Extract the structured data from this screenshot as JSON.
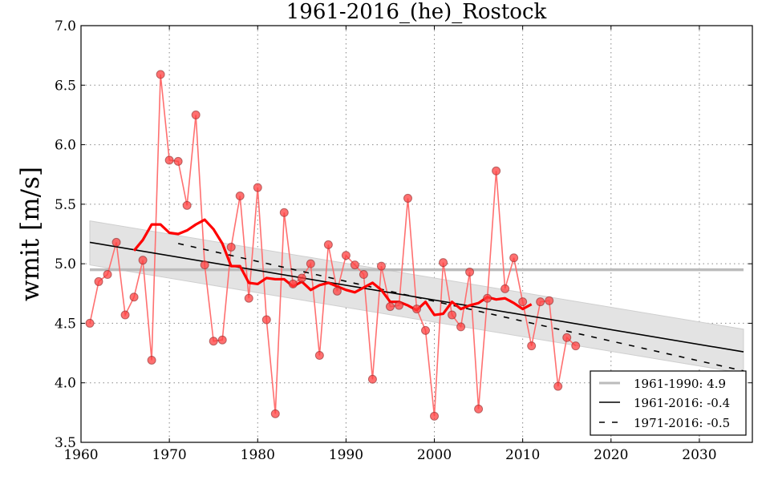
{
  "chart_data": {
    "type": "line",
    "title": "1961-2016_(he)_Rostock",
    "xlabel": "",
    "ylabel": "wmit [m/s]",
    "xlim": [
      1960,
      2036
    ],
    "ylim": [
      3.5,
      7.0
    ],
    "grid": true,
    "x_ticks": [
      "1960",
      "1970",
      "1980",
      "1990",
      "2000",
      "2010",
      "2020",
      "2030"
    ],
    "y_ticks": [
      "3.5",
      "4.0",
      "4.5",
      "5.0",
      "5.5",
      "6.0",
      "6.5",
      "7.0"
    ],
    "colors": {
      "points": "#ff0000",
      "smooth": "#ff0000",
      "mean": "#bbbbbb",
      "trend": "#000000",
      "band": "#e3e3e3"
    },
    "series": [
      {
        "name": "annual",
        "x": [
          1961,
          1962,
          1963,
          1964,
          1965,
          1966,
          1967,
          1968,
          1969,
          1970,
          1971,
          1972,
          1973,
          1974,
          1975,
          1976,
          1977,
          1978,
          1979,
          1980,
          1981,
          1982,
          1983,
          1984,
          1985,
          1986,
          1987,
          1988,
          1989,
          1990,
          1991,
          1992,
          1993,
          1994,
          1995,
          1996,
          1997,
          1998,
          1999,
          2000,
          2001,
          2002,
          2003,
          2004,
          2005,
          2006,
          2007,
          2008,
          2009,
          2010,
          2011,
          2012,
          2013,
          2014,
          2015,
          2016
        ],
        "values": [
          4.5,
          4.85,
          4.91,
          5.18,
          4.57,
          4.72,
          5.03,
          4.19,
          6.59,
          5.87,
          5.86,
          5.49,
          6.25,
          4.99,
          4.35,
          4.36,
          5.14,
          5.57,
          4.71,
          5.64,
          4.53,
          3.74,
          5.43,
          4.83,
          4.88,
          5.0,
          4.23,
          5.16,
          4.77,
          5.07,
          4.99,
          4.91,
          4.03,
          4.98,
          4.64,
          4.65,
          5.55,
          4.62,
          4.44,
          3.72,
          5.01,
          4.57,
          4.47,
          4.93,
          3.78,
          4.71,
          5.78,
          4.79,
          5.05,
          4.68,
          4.31,
          4.68,
          4.69,
          3.97,
          4.38,
          4.31
        ]
      },
      {
        "name": "smoothed",
        "x": [
          1966,
          1967,
          1968,
          1969,
          1970,
          1971,
          1972,
          1973,
          1974,
          1975,
          1976,
          1977,
          1978,
          1979,
          1980,
          1981,
          1982,
          1983,
          1984,
          1985,
          1986,
          1987,
          1988,
          1989,
          1990,
          1991,
          1992,
          1993,
          1994,
          1995,
          1996,
          1997,
          1998,
          1999,
          2000,
          2001,
          2002,
          2003,
          2004,
          2005,
          2006,
          2007,
          2008,
          2009,
          2010,
          2011
        ],
        "values": [
          5.11,
          5.2,
          5.33,
          5.33,
          5.26,
          5.25,
          5.28,
          5.33,
          5.37,
          5.29,
          5.17,
          4.98,
          4.98,
          4.84,
          4.83,
          4.88,
          4.87,
          4.87,
          4.81,
          4.85,
          4.78,
          4.82,
          4.84,
          4.81,
          4.78,
          4.76,
          4.8,
          4.84,
          4.78,
          4.68,
          4.68,
          4.65,
          4.61,
          4.68,
          4.57,
          4.58,
          4.68,
          4.62,
          4.65,
          4.67,
          4.72,
          4.7,
          4.71,
          4.67,
          4.62,
          4.66
        ]
      }
    ],
    "mean_line": {
      "label": "1961-1990: 4.9",
      "x": [
        1961,
        2035
      ],
      "y": [
        4.95,
        4.95
      ]
    },
    "trend_1961": {
      "label": "1961-2016: -0.4",
      "x": [
        1961,
        2035
      ],
      "y": [
        5.18,
        4.26
      ]
    },
    "trend_1971": {
      "label": "1971-2016: -0.5",
      "x": [
        1971,
        2035
      ],
      "y": [
        5.17,
        4.1
      ]
    },
    "confidence_band": {
      "x": [
        1961,
        2035
      ],
      "upper": [
        5.36,
        4.45
      ],
      "lower": [
        4.99,
        4.08
      ]
    },
    "legend_placement": "bottom-right"
  }
}
